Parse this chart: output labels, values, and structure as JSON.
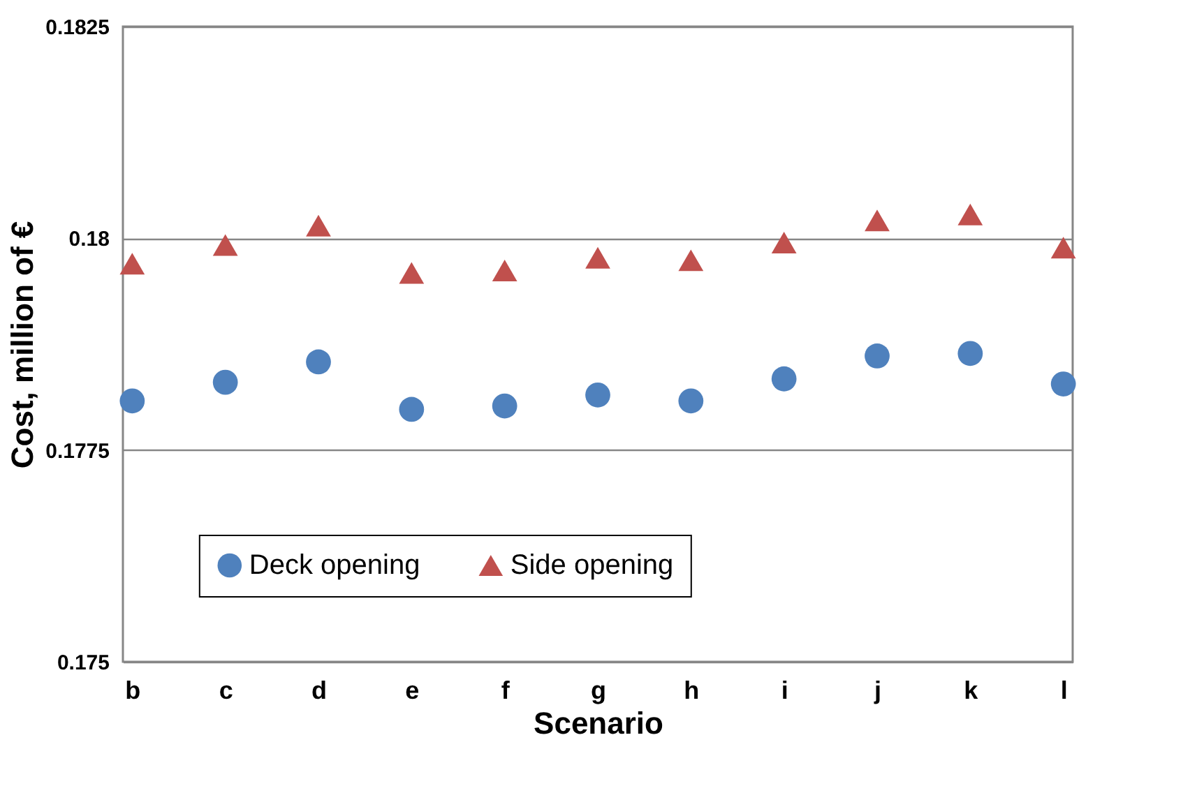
{
  "chart_data": {
    "type": "scatter",
    "xlabel": "Scenario",
    "ylabel": "Cost, million of €",
    "categories": [
      "b",
      "c",
      "d",
      "e",
      "f",
      "g",
      "h",
      "i",
      "j",
      "k",
      "l"
    ],
    "series": [
      {
        "name": "Deck opening",
        "color": "#4f81bd",
        "marker": "circle",
        "values": [
          0.17808,
          0.1783,
          0.17854,
          0.17798,
          0.17802,
          0.17815,
          0.17808,
          0.17834,
          0.17861,
          0.17864,
          0.17828
        ]
      },
      {
        "name": "Side opening",
        "color": "#c0504d",
        "marker": "triangle",
        "values": [
          0.1797,
          0.17992,
          0.18015,
          0.17959,
          0.17962,
          0.17977,
          0.17974,
          0.17995,
          0.18021,
          0.18028,
          0.17989
        ]
      }
    ],
    "ylim": [
      0.175,
      0.1825
    ],
    "yticks": [
      0.175,
      0.1775,
      0.18,
      0.1825
    ],
    "grid": "y",
    "legend": "bottom"
  }
}
